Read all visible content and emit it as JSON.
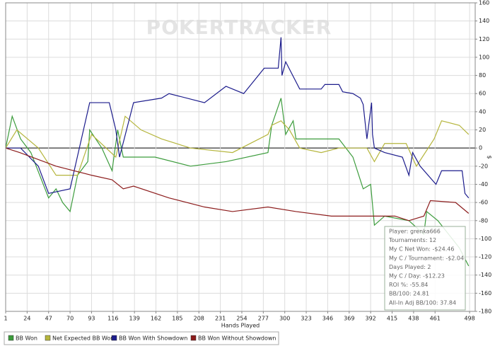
{
  "chart_data": {
    "type": "line",
    "watermark": "POKERTRACKER",
    "x_label": "Hands Played",
    "y_label": "$",
    "xlim": [
      1,
      504
    ],
    "ylim": [
      -180,
      160
    ],
    "xticks": [
      1,
      24,
      47,
      70,
      93,
      116,
      139,
      162,
      185,
      208,
      231,
      254,
      277,
      300,
      323,
      346,
      369,
      392,
      415,
      438,
      461,
      498
    ],
    "yticks": [
      -180,
      -160,
      -140,
      -120,
      -100,
      -80,
      -60,
      -40,
      -20,
      0,
      20,
      40,
      60,
      80,
      100,
      120,
      140,
      160
    ],
    "grid": true,
    "series": [
      {
        "name": "BB Won",
        "color": "#3c9c3c",
        "x": [
          1,
          8,
          17,
          28,
          47,
          55,
          62,
          70,
          78,
          89,
          91,
          104,
          115,
          121,
          127,
          161,
          199,
          237,
          282,
          286,
          296,
          301,
          309,
          312,
          358,
          373,
          384,
          392,
          396,
          407,
          433,
          449,
          452,
          464,
          487,
          497
        ],
        "values": [
          0,
          35,
          10,
          -5,
          -55,
          -45,
          -60,
          -70,
          -30,
          -15,
          20,
          0,
          -25,
          20,
          -10,
          -10,
          -20,
          -15,
          -5,
          25,
          55,
          15,
          30,
          10,
          10,
          -10,
          -45,
          -40,
          -85,
          -75,
          -80,
          -95,
          -70,
          -80,
          -110,
          -130
        ]
      },
      {
        "name": "Net Expected BB Won",
        "color": "#b5b53c",
        "x": [
          1,
          13,
          36,
          55,
          78,
          93,
          119,
          129,
          146,
          168,
          199,
          244,
          282,
          286,
          296,
          305,
          316,
          339,
          358,
          388,
          396,
          407,
          430,
          441,
          460,
          468,
          487,
          497
        ],
        "values": [
          0,
          20,
          0,
          -30,
          -30,
          15,
          -10,
          35,
          20,
          10,
          0,
          -5,
          15,
          25,
          30,
          20,
          0,
          -5,
          0,
          0,
          -15,
          5,
          5,
          -20,
          10,
          30,
          25,
          15
        ]
      },
      {
        "name": "BB Won With Showdown",
        "color": "#1c1c8c",
        "x": [
          1,
          17,
          36,
          47,
          70,
          91,
          112,
          119,
          123,
          138,
          168,
          176,
          214,
          237,
          256,
          278,
          293,
          296,
          297,
          301,
          316,
          339,
          343,
          358,
          362,
          373,
          381,
          384,
          388,
          393,
          394,
          396,
          407,
          426,
          433,
          437,
          445,
          462,
          468,
          490,
          493,
          497
        ],
        "values": [
          0,
          0,
          -20,
          -50,
          -45,
          50,
          50,
          20,
          -10,
          50,
          55,
          60,
          50,
          68,
          60,
          88,
          88,
          122,
          80,
          95,
          65,
          65,
          70,
          70,
          62,
          60,
          55,
          48,
          10,
          50,
          15,
          0,
          -5,
          -10,
          -30,
          -5,
          -20,
          -40,
          -25,
          -25,
          -50,
          -55
        ]
      },
      {
        "name": "BB Won Without Showdown",
        "color": "#8c1c1c",
        "x": [
          1,
          16,
          55,
          93,
          115,
          127,
          138,
          176,
          214,
          244,
          282,
          312,
          350,
          388,
          418,
          433,
          449,
          456,
          483,
          497
        ],
        "values": [
          0,
          -5,
          -20,
          -30,
          -35,
          -45,
          -42,
          -55,
          -65,
          -70,
          -65,
          -70,
          -75,
          -75,
          -75,
          -80,
          -75,
          -58,
          -60,
          -72
        ]
      }
    ],
    "stats_box": [
      "Player: grenka666",
      "Tournaments: 12",
      "My C Net Won: -$24.46",
      "My C / Tournament: -$2.04",
      "Days Played: 2",
      "My C / Day: -$12.23",
      "ROI %: -55.84",
      "BB/100: 24.81",
      "All-In Adj BB/100: 37.84"
    ]
  }
}
